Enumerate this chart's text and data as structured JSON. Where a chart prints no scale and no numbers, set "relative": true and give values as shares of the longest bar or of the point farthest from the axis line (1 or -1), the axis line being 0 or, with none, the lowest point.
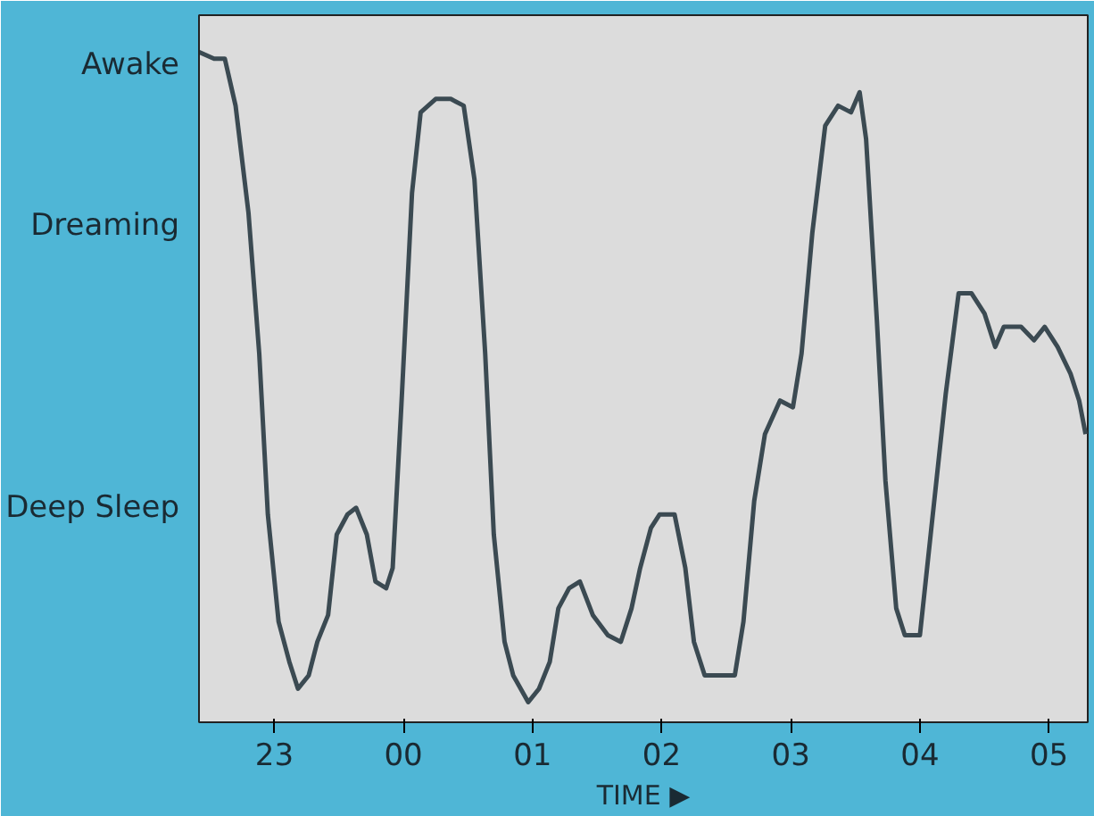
{
  "chart_data": {
    "type": "line",
    "xlabel": "TIME ▶",
    "relative": true,
    "annotations": [
      "Awake",
      "Dreaming",
      "Deep Sleep"
    ],
    "xlim": [
      "2000-01-01T22:25",
      "2000-01-02T05:18"
    ],
    "xticks": [
      {
        "value": "2000-01-01T23:00",
        "label": "23"
      },
      {
        "value": "2000-01-02T00:00",
        "label": "00"
      },
      {
        "value": "2000-01-02T01:00",
        "label": "01"
      },
      {
        "value": "2000-01-02T02:00",
        "label": "02"
      },
      {
        "value": "2000-01-02T03:00",
        "label": "03"
      },
      {
        "value": "2000-01-02T04:00",
        "label": "04"
      },
      {
        "value": "2000-01-02T05:00",
        "label": "05"
      }
    ],
    "grid": false,
    "line_style": "solid",
    "series": [
      {
        "color": "#3b4a52",
        "x": [
          "2000-01-01T22:25",
          "2000-01-01T22:32",
          "2000-01-01T22:37",
          "2000-01-01T22:42",
          "2000-01-01T22:48",
          "2000-01-01T22:53",
          "2000-01-01T22:57",
          "2000-01-01T23:02",
          "2000-01-01T23:07",
          "2000-01-01T23:11",
          "2000-01-01T23:16",
          "2000-01-01T23:20",
          "2000-01-01T23:25",
          "2000-01-01T23:29",
          "2000-01-01T23:34",
          "2000-01-01T23:38",
          "2000-01-01T23:43",
          "2000-01-01T23:47",
          "2000-01-01T23:52",
          "2000-01-01T23:55",
          "2000-01-01T23:59",
          "2000-01-02T00:04",
          "2000-01-02T00:08",
          "2000-01-02T00:15",
          "2000-01-02T00:22",
          "2000-01-02T00:28",
          "2000-01-02T00:33",
          "2000-01-02T00:38",
          "2000-01-02T00:42",
          "2000-01-02T00:47",
          "2000-01-02T00:51",
          "2000-01-02T00:58",
          "2000-01-02T01:03",
          "2000-01-02T01:08",
          "2000-01-02T01:12",
          "2000-01-02T01:17",
          "2000-01-02T01:22",
          "2000-01-02T01:28",
          "2000-01-02T01:35",
          "2000-01-02T01:41",
          "2000-01-02T01:46",
          "2000-01-02T01:50",
          "2000-01-02T01:55",
          "2000-01-02T01:59",
          "2000-01-02T02:06",
          "2000-01-02T02:11",
          "2000-01-02T02:15",
          "2000-01-02T02:20",
          "2000-01-02T02:27",
          "2000-01-02T02:34",
          "2000-01-02T02:38",
          "2000-01-02T02:43",
          "2000-01-02T02:48",
          "2000-01-02T02:55",
          "2000-01-02T03:01",
          "2000-01-02T03:05",
          "2000-01-02T03:10",
          "2000-01-02T03:16",
          "2000-01-02T03:22",
          "2000-01-02T03:28",
          "2000-01-02T03:32",
          "2000-01-02T03:35",
          "2000-01-02T03:40",
          "2000-01-02T03:44",
          "2000-01-02T03:49",
          "2000-01-02T03:53",
          "2000-01-02T04:00",
          "2000-01-02T04:05",
          "2000-01-02T04:12",
          "2000-01-02T04:18",
          "2000-01-02T04:24",
          "2000-01-02T04:30",
          "2000-01-02T04:35",
          "2000-01-02T04:39",
          "2000-01-02T04:47",
          "2000-01-02T04:53",
          "2000-01-02T04:58",
          "2000-01-02T05:04",
          "2000-01-02T05:10",
          "2000-01-02T05:14",
          "2000-01-02T05:17"
        ],
        "values": [
          1.0,
          0.99,
          0.99,
          0.92,
          0.76,
          0.55,
          0.31,
          0.15,
          0.09,
          0.05,
          0.07,
          0.12,
          0.16,
          0.28,
          0.31,
          0.32,
          0.28,
          0.21,
          0.2,
          0.23,
          0.47,
          0.79,
          0.91,
          0.93,
          0.93,
          0.92,
          0.81,
          0.55,
          0.28,
          0.12,
          0.07,
          0.03,
          0.05,
          0.09,
          0.17,
          0.2,
          0.21,
          0.16,
          0.13,
          0.12,
          0.17,
          0.23,
          0.29,
          0.31,
          0.31,
          0.23,
          0.12,
          0.07,
          0.07,
          0.07,
          0.15,
          0.33,
          0.43,
          0.48,
          0.47,
          0.55,
          0.73,
          0.89,
          0.92,
          0.91,
          0.94,
          0.87,
          0.6,
          0.36,
          0.17,
          0.13,
          0.13,
          0.28,
          0.49,
          0.64,
          0.64,
          0.61,
          0.56,
          0.59,
          0.59,
          0.57,
          0.59,
          0.56,
          0.52,
          0.48,
          0.43
        ]
      }
    ]
  }
}
